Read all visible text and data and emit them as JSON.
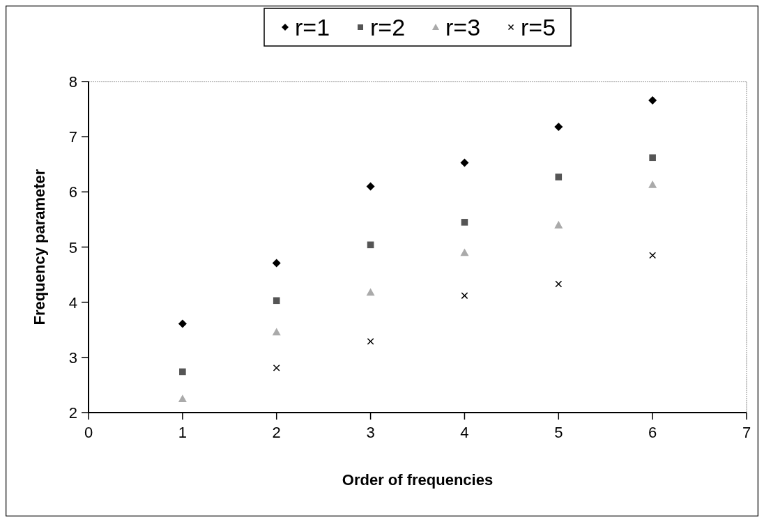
{
  "chart_data": {
    "type": "scatter",
    "xlabel": "Order of frequencies",
    "ylabel": "Frequency parameter",
    "x": [
      1,
      2,
      3,
      4,
      5,
      6
    ],
    "series": [
      {
        "name": "r=1",
        "color": "#000000",
        "marker": "diamond",
        "values": [
          3.61,
          4.71,
          6.1,
          6.53,
          7.18,
          7.66
        ]
      },
      {
        "name": "r=2",
        "color": "#555555",
        "marker": "square",
        "values": [
          2.74,
          4.03,
          5.04,
          5.45,
          6.27,
          6.62
        ]
      },
      {
        "name": "r=3",
        "color": "#aaaaaa",
        "marker": "triangle",
        "values": [
          2.25,
          3.46,
          4.18,
          4.9,
          5.4,
          6.13
        ]
      },
      {
        "name": "r=5",
        "color": "#000000",
        "marker": "cross",
        "values": [
          null,
          2.81,
          3.29,
          4.12,
          4.33,
          4.85
        ]
      }
    ],
    "xlim": [
      0,
      7
    ],
    "xticks": [
      0,
      1,
      2,
      3,
      4,
      5,
      6,
      7
    ],
    "ylim": [
      2,
      8
    ],
    "yticks": [
      2,
      3,
      4,
      5,
      6,
      7,
      8
    ],
    "grid": false,
    "legend": "top"
  }
}
